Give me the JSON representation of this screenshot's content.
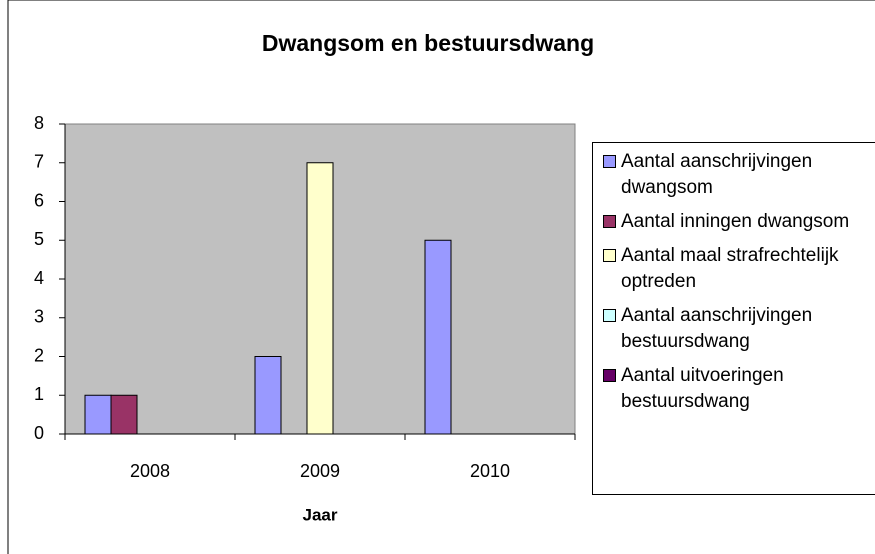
{
  "chart_data": {
    "type": "bar",
    "title": "Dwangsom en bestuursdwang",
    "x_label": "Jaar",
    "categories": [
      "2008",
      "2009",
      "2010"
    ],
    "series": [
      {
        "name": "Aantal aanschrijvingen dwangsom",
        "color": "#9999ff",
        "values": [
          1,
          2,
          5
        ]
      },
      {
        "name": "Aantal inningen dwangsom",
        "color": "#993366",
        "values": [
          1,
          0,
          0
        ]
      },
      {
        "name": "Aantal maal strafrechtelijk optreden",
        "color": "#ffffcc",
        "values": [
          0,
          7,
          0
        ]
      },
      {
        "name": "Aantal aanschrijvingen bestuursdwang",
        "color": "#ccffff",
        "values": [
          0,
          0,
          0
        ]
      },
      {
        "name": "Aantal uitvoeringen bestuursdwang",
        "color": "#660066",
        "values": [
          0,
          0,
          0
        ]
      }
    ],
    "ylim": [
      0,
      8
    ],
    "yticks": [
      0,
      1,
      2,
      3,
      4,
      5,
      6,
      7,
      8
    ],
    "grid": false,
    "legend": "right"
  }
}
